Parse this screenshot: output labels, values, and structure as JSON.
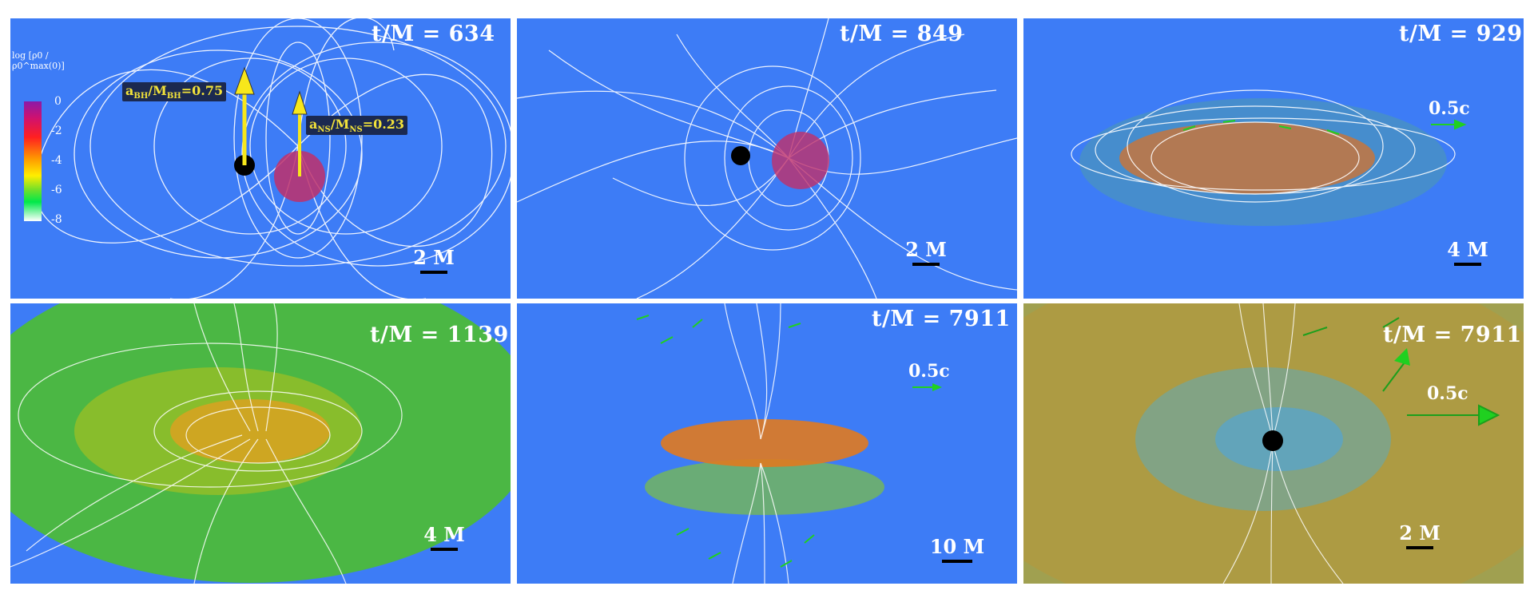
{
  "panels": [
    {
      "time_label": "t/M = 634",
      "scale_label": "2 M"
    },
    {
      "time_label": "t/M = 849",
      "scale_label": "2 M"
    },
    {
      "time_label": "t/M = 929",
      "scale_label": "4 M",
      "velocity_label": "0.5c"
    },
    {
      "time_label": "t/M = 1139",
      "scale_label": "4 M"
    },
    {
      "time_label": "t/M = 7911",
      "scale_label": "10 M",
      "velocity_label": "0.5c"
    },
    {
      "time_label": "t/M = 7911",
      "scale_label": "2 M",
      "velocity_label": "0.5c"
    }
  ],
  "colorbar": {
    "title": "log [ρ0 / ρ0^max(0)]",
    "ticks": [
      "0",
      "-2",
      "-4",
      "-6",
      "-8"
    ]
  },
  "spin_bh": {
    "main": "a",
    "sub1": "BH",
    "mid": "/M",
    "sub2": "BH",
    "value": "=0.75"
  },
  "spin_ns": {
    "main": "a",
    "sub1": "NS",
    "mid": "/M",
    "sub2": "NS",
    "value": "=0.23"
  },
  "colors": {
    "background": "#3d7cf6",
    "field_lines": "#ffffff",
    "spin_arrows": "#f7e71b",
    "velocity_arrows": "#20d020"
  }
}
